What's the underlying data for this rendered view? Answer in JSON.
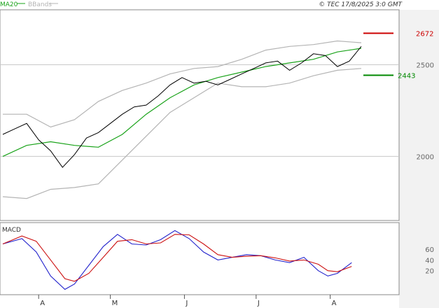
{
  "header": {
    "legend_ma": "MA20",
    "legend_bbands": "BBands",
    "copyright": "© TEC 17/8/2025 3:0 GMT",
    "ma_color": "#1aa31a",
    "bbands_color": "#b4b4b4"
  },
  "main_panel": {
    "y_ticks": [
      {
        "value": 2500,
        "label": "2500"
      },
      {
        "value": 2000,
        "label": "2000"
      }
    ],
    "levels": [
      {
        "name": "resistance",
        "value": 2672,
        "label": "2672",
        "color": "#cc0000"
      },
      {
        "name": "support",
        "value": 2443,
        "label": "2443",
        "color": "#008800"
      }
    ],
    "grid_color": "#c8c8c8",
    "panel_bg": "#f5f5f5",
    "plot_bg": "#ffffff"
  },
  "macd_panel": {
    "title": "MACD",
    "y_ticks": [
      {
        "value": 60,
        "label": "60"
      },
      {
        "value": 40,
        "label": "40"
      },
      {
        "value": 20,
        "label": "20"
      }
    ],
    "macd_color": "#2222cc",
    "signal_color": "#cc1111"
  },
  "x_axis": {
    "month_labels": [
      {
        "label": "A",
        "day": 15
      },
      {
        "label": "M",
        "day": 45
      },
      {
        "label": "J",
        "day": 76
      },
      {
        "label": "J",
        "day": 106
      },
      {
        "label": "A",
        "day": 137
      }
    ]
  },
  "chart_data": [
    {
      "type": "line",
      "name": "price",
      "x_unit": "trading day index",
      "x_range": [
        0,
        150
      ],
      "ylim": [
        1650,
        2800
      ],
      "series": [
        {
          "name": "MA20",
          "x": [
            0,
            10,
            20,
            30,
            40,
            50,
            60,
            70,
            80,
            90,
            100,
            110,
            120,
            130,
            140,
            150
          ],
          "values": [
            2000,
            2060,
            2080,
            2060,
            2050,
            2120,
            2230,
            2320,
            2390,
            2430,
            2460,
            2490,
            2510,
            2530,
            2570,
            2590
          ]
        },
        {
          "name": "BBand upper",
          "x": [
            0,
            10,
            20,
            30,
            40,
            50,
            60,
            70,
            80,
            90,
            100,
            110,
            120,
            130,
            140,
            150
          ],
          "values": [
            2230,
            2230,
            2160,
            2200,
            2300,
            2360,
            2400,
            2450,
            2480,
            2490,
            2530,
            2580,
            2600,
            2610,
            2630,
            2620
          ]
        },
        {
          "name": "BBand lower",
          "x": [
            0,
            10,
            20,
            30,
            40,
            50,
            60,
            70,
            80,
            90,
            100,
            110,
            120,
            130,
            140,
            150
          ],
          "values": [
            1780,
            1770,
            1820,
            1830,
            1850,
            1980,
            2110,
            2240,
            2320,
            2400,
            2380,
            2380,
            2400,
            2440,
            2470,
            2480
          ]
        },
        {
          "name": "price",
          "x": [
            0,
            5,
            10,
            15,
            20,
            25,
            30,
            35,
            40,
            45,
            50,
            55,
            60,
            65,
            70,
            75,
            80,
            85,
            90,
            95,
            100,
            105,
            110,
            115,
            120,
            125,
            130,
            135,
            140,
            145,
            150
          ],
          "values": [
            2120,
            2150,
            2180,
            2090,
            2030,
            1940,
            2010,
            2100,
            2130,
            2180,
            2230,
            2270,
            2280,
            2330,
            2390,
            2430,
            2400,
            2410,
            2390,
            2420,
            2450,
            2480,
            2510,
            2520,
            2470,
            2510,
            2560,
            2550,
            2490,
            2520,
            2600
          ]
        }
      ]
    },
    {
      "type": "line",
      "name": "MACD",
      "x_unit": "trading day index",
      "x_range": [
        0,
        150
      ],
      "ylim": [
        -25,
        110
      ],
      "series": [
        {
          "name": "MACD",
          "x": [
            0,
            8,
            14,
            20,
            26,
            30,
            36,
            42,
            48,
            54,
            60,
            66,
            72,
            78,
            84,
            90,
            96,
            102,
            108,
            114,
            120,
            126,
            132,
            136,
            140,
            146
          ],
          "values": [
            70,
            80,
            55,
            10,
            -15,
            -5,
            30,
            65,
            88,
            70,
            68,
            78,
            95,
            80,
            55,
            40,
            45,
            50,
            48,
            40,
            35,
            45,
            20,
            10,
            15,
            35
          ]
        },
        {
          "name": "Signal",
          "x": [
            0,
            8,
            14,
            20,
            26,
            30,
            36,
            42,
            48,
            54,
            60,
            66,
            72,
            78,
            84,
            90,
            96,
            102,
            108,
            114,
            120,
            126,
            132,
            136,
            140,
            146
          ],
          "values": [
            70,
            85,
            75,
            40,
            5,
            0,
            15,
            45,
            75,
            78,
            70,
            72,
            88,
            87,
            70,
            50,
            45,
            47,
            48,
            44,
            38,
            40,
            32,
            20,
            18,
            28
          ]
        }
      ]
    }
  ]
}
